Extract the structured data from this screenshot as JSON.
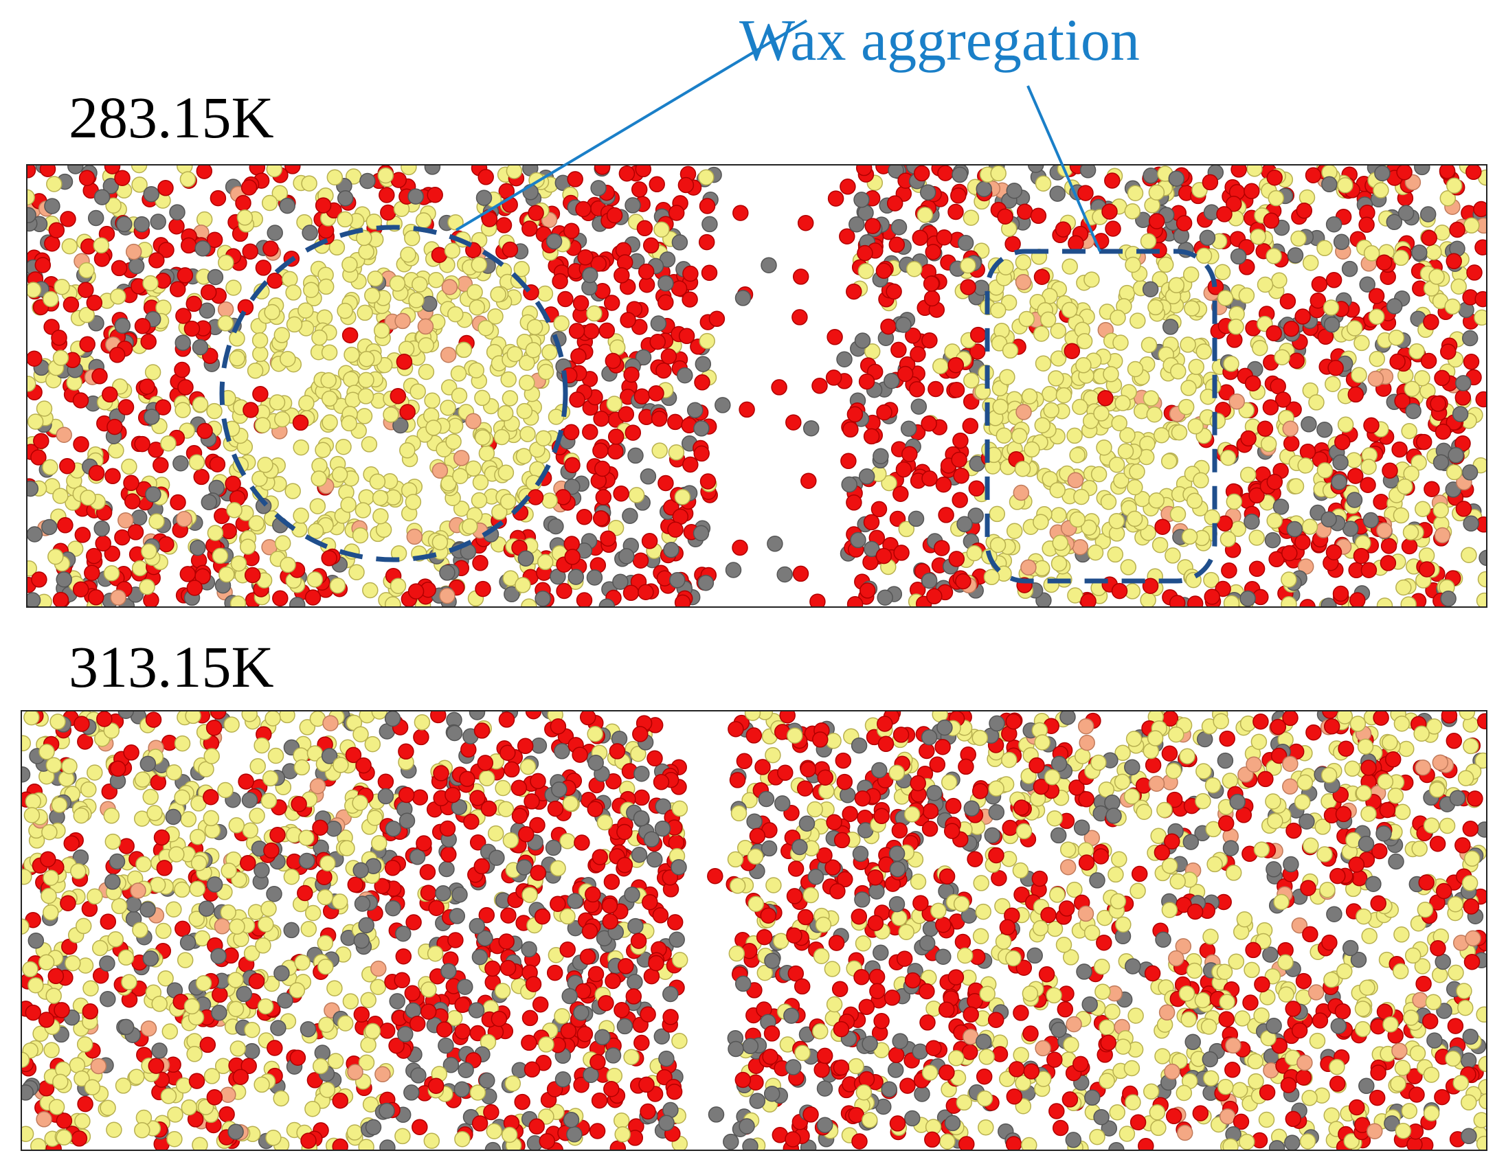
{
  "panels": [
    {
      "label": "283.15K"
    },
    {
      "label": "313.15K"
    }
  ],
  "annotation": {
    "text": "Wax aggregation"
  }
}
